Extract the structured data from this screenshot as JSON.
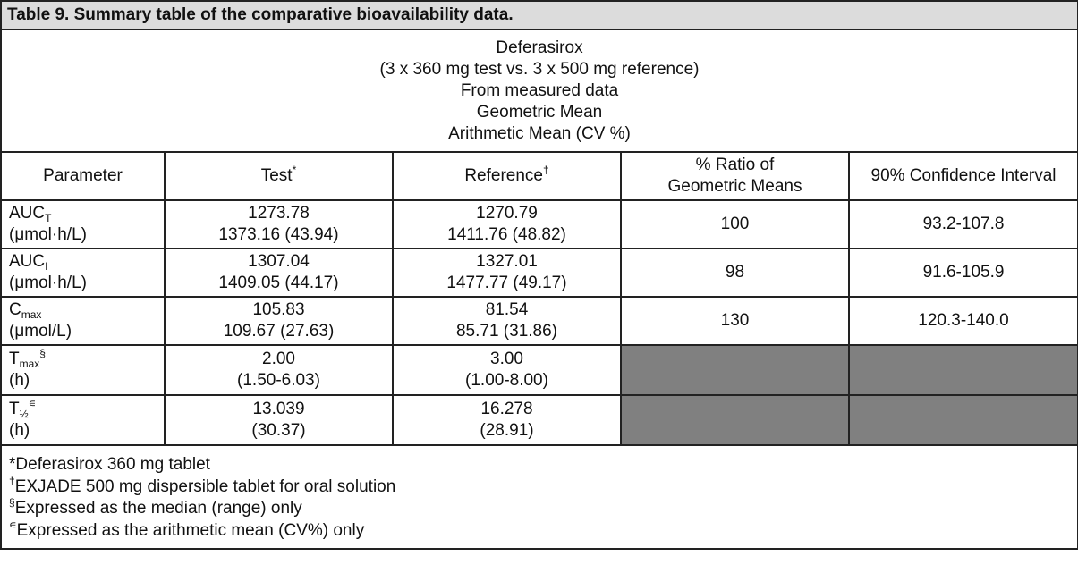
{
  "title": "Table 9. Summary table of the comparative bioavailability data.",
  "header_lines": [
    "Deferasirox",
    "(3 x 360 mg test vs. 3 x 500 mg reference)",
    "From measured data",
    "Geometric Mean",
    "Arithmetic Mean (CV %)"
  ],
  "columns": {
    "parameter": "Parameter",
    "test": "Test",
    "test_mark": "*",
    "reference": "Reference",
    "reference_mark": "†",
    "ratio_line1": "% Ratio of",
    "ratio_line2": "Geometric Means",
    "ci": "90% Confidence Interval"
  },
  "rows": [
    {
      "name": "AUC",
      "sub": "T",
      "sup": "",
      "unit": "(μmol·h/L)",
      "test1": "1273.78",
      "test2": "1373.16 (43.94)",
      "ref1": "1270.79",
      "ref2": "1411.76 (48.82)",
      "ratio": "100",
      "ci": "93.2-107.8"
    },
    {
      "name": "AUC",
      "sub": "I",
      "sup": "",
      "unit": "(μmol·h/L)",
      "test1": "1307.04",
      "test2": "1409.05 (44.17)",
      "ref1": "1327.01",
      "ref2": "1477.77 (49.17)",
      "ratio": "98",
      "ci": "91.6-105.9"
    },
    {
      "name": "C",
      "sub": "max",
      "sup": "",
      "unit": "(μmol/L)",
      "test1": "105.83",
      "test2": "109.67 (27.63)",
      "ref1": "81.54",
      "ref2": "85.71 (31.86)",
      "ratio": "130",
      "ci": "120.3-140.0"
    },
    {
      "name": "T",
      "sub": "max",
      "sup": "§",
      "unit": "(h)",
      "test1": "2.00",
      "test2": "(1.50-6.03)",
      "ref1": "3.00",
      "ref2": "(1.00-8.00)",
      "ratio": null,
      "ci": null
    },
    {
      "name": "T",
      "sub": "½",
      "sup": "∊",
      "unit": "(h)",
      "test1": "13.039",
      "test2": "(30.37)",
      "ref1": "16.278",
      "ref2": "(28.91)",
      "ratio": null,
      "ci": null
    }
  ],
  "footnotes": [
    {
      "mark": "*",
      "text": "Deferasirox 360 mg tablet"
    },
    {
      "mark": "†",
      "text": "EXJADE 500 mg dispersible tablet for oral solution"
    },
    {
      "mark": "§",
      "text": "Expressed as the median (range) only"
    },
    {
      "mark": "∊",
      "text": "Expressed as the arithmetic mean (CV%) only"
    }
  ],
  "colors": {
    "title_bg": "#dcdcdc",
    "empty_cell": "#808080"
  }
}
